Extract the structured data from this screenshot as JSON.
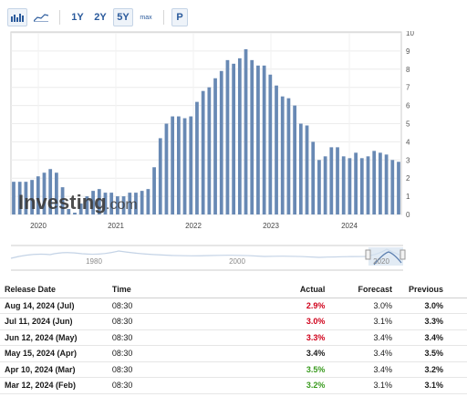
{
  "toolbar": {
    "bar_icon": "bar-chart-icon",
    "line_icon": "area-chart-icon",
    "ranges": [
      "1Y",
      "2Y",
      "5Y",
      "max"
    ],
    "active_range": "5Y",
    "p_label": "P"
  },
  "watermark": {
    "brand": "Investing",
    "suffix": ".com"
  },
  "chart_data": {
    "type": "bar",
    "x_ticks": [
      "2020",
      "2021",
      "2022",
      "2023",
      "2024"
    ],
    "y_ticks": [
      0,
      1,
      2,
      3,
      4,
      5,
      6,
      7,
      8,
      9,
      10
    ],
    "ylim": [
      0,
      10
    ],
    "grid": true,
    "bar_color": "#6889b4",
    "values": [
      1.8,
      1.8,
      1.8,
      1.9,
      2.1,
      2.3,
      2.5,
      2.3,
      1.5,
      0.3,
      0.1,
      0.6,
      1.0,
      1.3,
      1.4,
      1.2,
      1.2,
      1.0,
      1.0,
      1.2,
      1.2,
      1.3,
      1.4,
      2.6,
      4.2,
      5.0,
      5.4,
      5.4,
      5.3,
      5.4,
      6.2,
      6.8,
      7.0,
      7.5,
      7.9,
      8.5,
      8.3,
      8.6,
      9.1,
      8.5,
      8.2,
      8.2,
      7.7,
      7.1,
      6.5,
      6.4,
      6.0,
      5.0,
      4.9,
      4.0,
      3.0,
      3.2,
      3.7,
      3.7,
      3.2,
      3.1,
      3.4,
      3.1,
      3.2,
      3.5,
      3.4,
      3.3,
      3.0,
      2.9
    ],
    "navigator": {
      "x_labels": [
        "1980",
        "2000",
        "2020"
      ]
    }
  },
  "table": {
    "headers": {
      "release_date": "Release Date",
      "time": "Time",
      "actual": "Actual",
      "forecast": "Forecast",
      "previous": "Previous"
    },
    "rows": [
      {
        "date": "Aug 14, 2024 (Jul)",
        "time": "08:30",
        "actual": "2.9%",
        "actual_color": "red",
        "forecast": "3.0%",
        "previous": "3.0%"
      },
      {
        "date": "Jul 11, 2024 (Jun)",
        "time": "08:30",
        "actual": "3.0%",
        "actual_color": "red",
        "forecast": "3.1%",
        "previous": "3.3%"
      },
      {
        "date": "Jun 12, 2024 (May)",
        "time": "08:30",
        "actual": "3.3%",
        "actual_color": "red",
        "forecast": "3.4%",
        "previous": "3.4%"
      },
      {
        "date": "May 15, 2024 (Apr)",
        "time": "08:30",
        "actual": "3.4%",
        "actual_color": "black",
        "forecast": "3.4%",
        "previous": "3.5%"
      },
      {
        "date": "Apr 10, 2024 (Mar)",
        "time": "08:30",
        "actual": "3.5%",
        "actual_color": "green",
        "forecast": "3.4%",
        "previous": "3.2%"
      },
      {
        "date": "Mar 12, 2024 (Feb)",
        "time": "08:30",
        "actual": "3.2%",
        "actual_color": "green",
        "forecast": "3.1%",
        "previous": "3.1%"
      }
    ]
  }
}
